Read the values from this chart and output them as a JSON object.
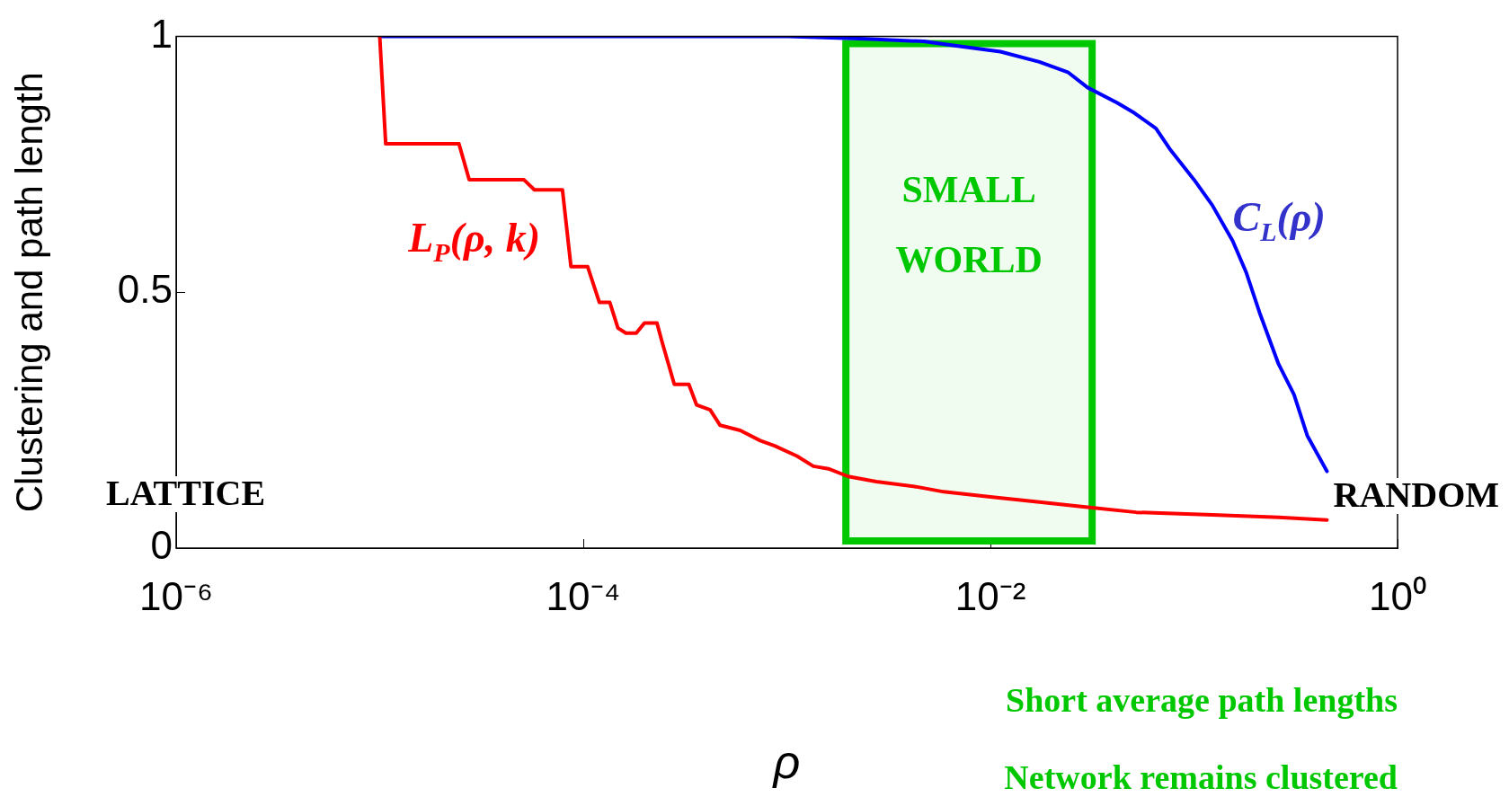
{
  "chart_data": {
    "type": "line",
    "xlabel": "ρ",
    "ylabel": "Clustering and path length",
    "log": "x",
    "grid": false,
    "legend": false,
    "marker": "none",
    "line_style": "solid",
    "xlim": [
      1e-06,
      1
    ],
    "ylim": [
      0,
      1
    ],
    "xticks": [
      {
        "value": 1e-06,
        "label": "10⁻⁶"
      },
      {
        "value": 0.0001,
        "label": "10⁻⁴"
      },
      {
        "value": 0.01,
        "label": "10⁻²"
      },
      {
        "value": 1,
        "label": "10⁰"
      }
    ],
    "yticks": [
      0,
      0.5,
      1
    ],
    "series": [
      {
        "name": "L$_{P}$(ρ, k)",
        "color": "#ff0000",
        "x": [
          1e-05,
          1.07e-05,
          2.45e-05,
          2.75e-05,
          5.1e-05,
          5.75e-05,
          7.9e-05,
          8.7e-05,
          0.000105,
          0.00012,
          0.000135,
          0.000148,
          0.000162,
          0.000182,
          0.0002,
          0.00023,
          0.000245,
          0.00028,
          0.00033,
          0.00036,
          0.00042,
          0.00047,
          0.00059,
          0.00074,
          0.00087,
          0.00112,
          0.00135,
          0.0016,
          0.002,
          0.00275,
          0.0043,
          0.0059,
          0.01,
          0.0174,
          0.03,
          0.052,
          0.123,
          0.26,
          0.45
        ],
        "values": [
          1,
          0.79,
          0.79,
          0.72,
          0.72,
          0.7,
          0.7,
          0.55,
          0.55,
          0.48,
          0.48,
          0.43,
          0.42,
          0.42,
          0.44,
          0.44,
          0.4,
          0.32,
          0.32,
          0.28,
          0.27,
          0.24,
          0.23,
          0.21,
          0.2,
          0.18,
          0.16,
          0.155,
          0.14,
          0.13,
          0.12,
          0.11,
          0.1,
          0.09,
          0.08,
          0.07,
          0.065,
          0.06,
          0.055
        ]
      },
      {
        "name": "C$_{L}$(ρ)",
        "color": "#0000ff",
        "x": [
          1e-05,
          0.00102,
          0.00245,
          0.0047,
          0.0072,
          0.0112,
          0.0174,
          0.024,
          0.03,
          0.042,
          0.051,
          0.065,
          0.076,
          0.1,
          0.123,
          0.155,
          0.18,
          0.21,
          0.26,
          0.31,
          0.36,
          0.45
        ],
        "values": [
          1,
          1,
          0.995,
          0.99,
          0.98,
          0.97,
          0.95,
          0.93,
          0.9,
          0.87,
          0.85,
          0.82,
          0.78,
          0.72,
          0.67,
          0.6,
          0.54,
          0.46,
          0.36,
          0.3,
          0.22,
          0.15
        ]
      }
    ],
    "bands": [
      {
        "axis": "x",
        "from": 0.00195,
        "to": 0.0316,
        "label": "SMALL WORLD",
        "color": "#00c800"
      }
    ],
    "annotations": [
      "LATTICE",
      "RANDOM",
      "Short average path lengths",
      "Network remains clustered"
    ]
  }
}
